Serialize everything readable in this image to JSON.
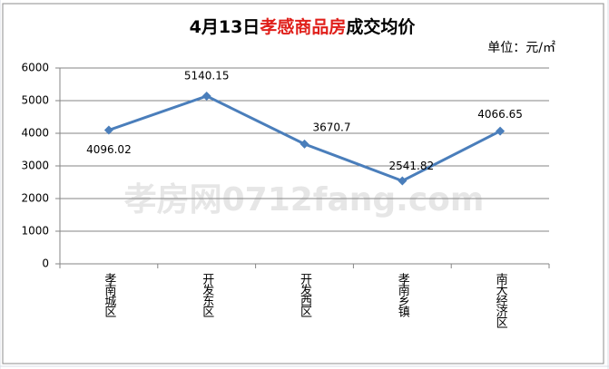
{
  "chart_data": {
    "type": "line",
    "title_parts": [
      "4月13日",
      "孝感商品房",
      "成交均价"
    ],
    "title_colors": [
      "#000000",
      "#e0201b",
      "#000000"
    ],
    "unit": "单位：元/㎡",
    "watermark": "孝房网0712fang.com",
    "categories": [
      "孝南城区",
      "开发东区",
      "开发西区",
      "孝南乡镇",
      "南大经济区"
    ],
    "series": [
      {
        "name": "成交均价",
        "color": "#4a7ebb",
        "values": [
          4096.02,
          5140.15,
          3670.7,
          2541.82,
          4066.65
        ]
      }
    ],
    "ylim": [
      0,
      6000
    ],
    "yticks": [
      0,
      1000,
      2000,
      3000,
      4000,
      5000,
      6000
    ],
    "grid": true
  }
}
